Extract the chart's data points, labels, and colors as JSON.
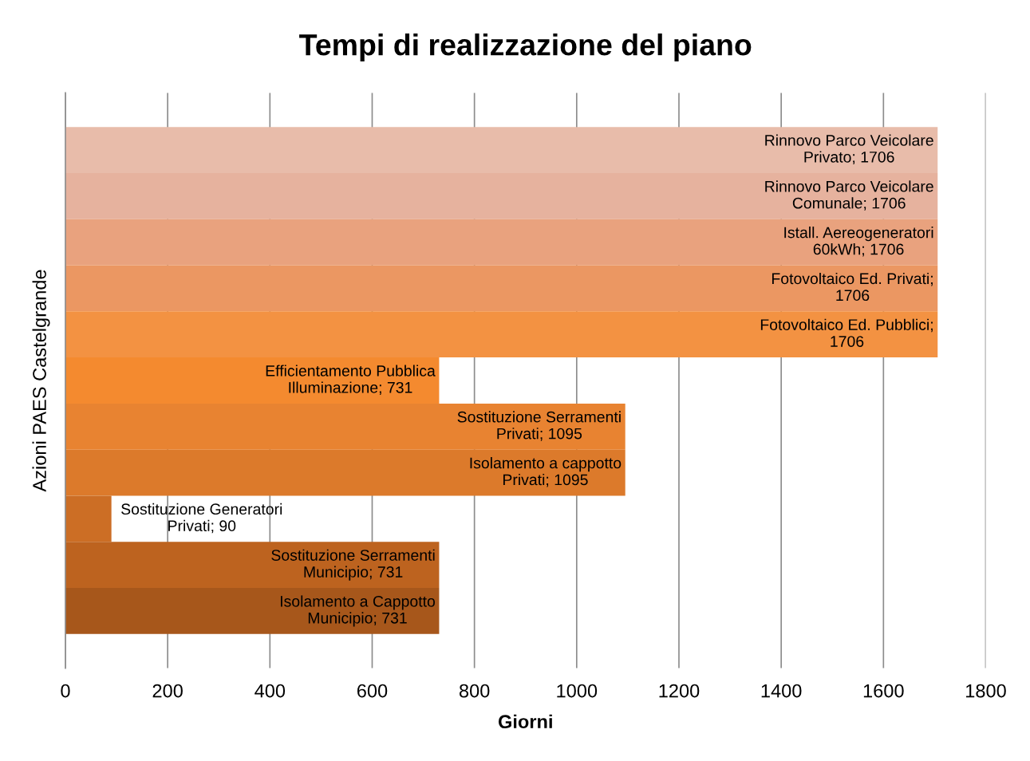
{
  "chart_data": {
    "type": "bar",
    "orientation": "horizontal",
    "title": "Tempi di realizzazione del piano",
    "xlabel": "Giorni",
    "ylabel": "Azioni PAES Castelgrande",
    "categories": [
      null,
      null,
      null,
      null,
      null,
      null,
      null,
      null,
      null,
      null,
      null
    ],
    "values": [
      1706,
      1706,
      1706,
      1706,
      1706,
      731,
      1095,
      1095,
      90,
      731,
      731
    ],
    "value_labels": [
      "Rinnovo Parco Veicolare\nPrivato; 1706",
      "Rinnovo Parco Veicolare\nComunale; 1706",
      "Istall. Aereogeneratori\n60kWh; 1706",
      "Fotovoltaico Ed. Privati;\n1706",
      "Fotovoltaico Ed. Pubblici;\n1706",
      "Efficientamento Pubblica\nIlluminazione; 731",
      "Sostituzione Serramenti\nPrivati; 1095",
      "Isolamento a cappotto\nPrivati; 1095",
      "Sostituzione Generatori\nPrivati; 90",
      "Sostituzione Serramenti\nMunicipio; 731",
      "Isolamento a Cappotto\nMunicipio; 731"
    ],
    "colors": [
      "#e8bcaa",
      "#e6b29e",
      "#e9a27e",
      "#eb9762",
      "#f39242",
      "#f48a2f",
      "#e88331",
      "#dc7a2b",
      "#cc6e25",
      "#bd631f",
      "#a7571b"
    ],
    "xlim": [
      0,
      1800
    ],
    "xticks": [
      0,
      200,
      400,
      600,
      800,
      1000,
      1200,
      1400,
      1600,
      1800
    ],
    "grid": "x",
    "tick_labels": "x"
  }
}
